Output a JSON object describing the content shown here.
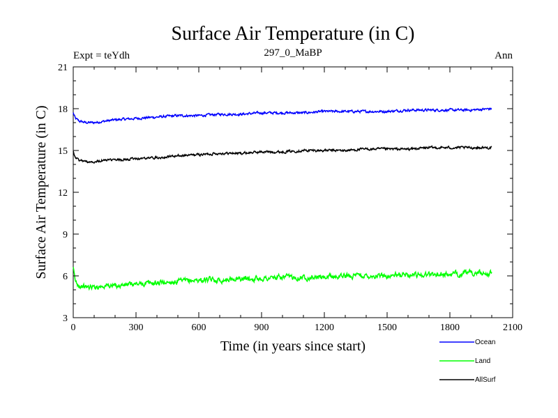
{
  "chart_data": {
    "type": "line",
    "title": "Surface Air Temperature (in C)",
    "subtitle": "297_0_MaBP",
    "left_note": "Expt = teYdh",
    "right_note": "Ann",
    "xlabel": "Time (in years since start)",
    "ylabel": "Surface Air Temperature (in C)",
    "xlim": [
      0,
      2100
    ],
    "ylim": [
      3,
      21
    ],
    "xticks": [
      0,
      300,
      600,
      900,
      1200,
      1500,
      1800,
      2100
    ],
    "yticks": [
      3,
      6,
      9,
      12,
      15,
      18,
      21
    ],
    "grid": false,
    "legend_position": "bottom-right",
    "series": [
      {
        "name": "Ocean",
        "color": "#0000ff",
        "x": [
          0,
          10,
          30,
          60,
          100,
          150,
          200,
          300,
          400,
          500,
          600,
          700,
          800,
          900,
          1000,
          1100,
          1200,
          1300,
          1400,
          1500,
          1600,
          1700,
          1800,
          1900,
          2000
        ],
        "values": [
          17.7,
          17.3,
          17.1,
          17.0,
          17.0,
          17.1,
          17.2,
          17.3,
          17.4,
          17.5,
          17.5,
          17.6,
          17.6,
          17.7,
          17.7,
          17.7,
          17.8,
          17.8,
          17.8,
          17.8,
          17.9,
          17.9,
          17.9,
          17.9,
          18.0
        ]
      },
      {
        "name": "Land",
        "color": "#00ff00",
        "x": [
          0,
          10,
          30,
          60,
          100,
          150,
          200,
          300,
          400,
          500,
          600,
          700,
          800,
          900,
          1000,
          1100,
          1200,
          1300,
          1400,
          1500,
          1600,
          1700,
          1800,
          1900,
          2000
        ],
        "values": [
          6.5,
          5.6,
          5.3,
          5.2,
          5.2,
          5.3,
          5.3,
          5.4,
          5.5,
          5.6,
          5.7,
          5.7,
          5.8,
          5.8,
          5.9,
          5.9,
          5.9,
          6.0,
          6.0,
          6.0,
          6.1,
          6.1,
          6.1,
          6.2,
          6.2
        ]
      },
      {
        "name": "AllSurf",
        "color": "#000000",
        "x": [
          0,
          10,
          30,
          60,
          100,
          150,
          200,
          300,
          400,
          500,
          600,
          700,
          800,
          900,
          1000,
          1100,
          1200,
          1300,
          1400,
          1500,
          1600,
          1700,
          1800,
          1900,
          2000
        ],
        "values": [
          15.0,
          14.5,
          14.3,
          14.2,
          14.2,
          14.3,
          14.3,
          14.4,
          14.5,
          14.6,
          14.7,
          14.8,
          14.8,
          14.9,
          14.9,
          15.0,
          15.0,
          15.0,
          15.1,
          15.1,
          15.1,
          15.2,
          15.2,
          15.2,
          15.2
        ]
      }
    ]
  }
}
